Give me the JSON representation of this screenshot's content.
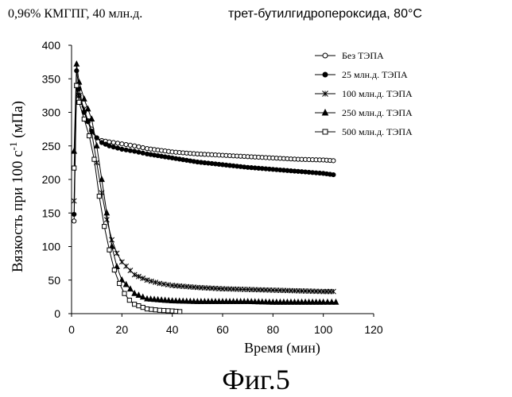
{
  "header": {
    "title_part1": "0,96% КМГПГ, 40 млн.д.",
    "title_part2": "трет-бутилгидропероксида, 80°С"
  },
  "footer": {
    "figure_label": "Фиг.5"
  },
  "chart_data": {
    "type": "line",
    "title": "0,96% КМГПГ, 40 млн.д. трет-бутилгидропероксида, 80°С",
    "xlabel": "Время (мин)",
    "ylabel_main": "Вязкость при 100 с",
    "ylabel_sup": "-1",
    "ylabel_tail": " (мПа)",
    "xlim": [
      0,
      120
    ],
    "ylim": [
      0,
      400
    ],
    "x_ticks": [
      "0",
      "20",
      "40",
      "60",
      "80",
      "100",
      "120"
    ],
    "y_ticks": [
      "0",
      "50",
      "100",
      "150",
      "200",
      "250",
      "300",
      "350",
      "400"
    ],
    "grid": false,
    "legend_position": "top-right",
    "series": [
      {
        "name": "Без ТЭПА",
        "marker": "open-circle",
        "points": [
          [
            1,
            138
          ],
          [
            2,
            340
          ],
          [
            3,
            325
          ],
          [
            5,
            300
          ],
          [
            8,
            275
          ],
          [
            10,
            262
          ],
          [
            12,
            258
          ],
          [
            15,
            256
          ],
          [
            20,
            253
          ],
          [
            25,
            250
          ],
          [
            30,
            246
          ],
          [
            40,
            241
          ],
          [
            50,
            238
          ],
          [
            60,
            236
          ],
          [
            70,
            234
          ],
          [
            80,
            232
          ],
          [
            90,
            230
          ],
          [
            100,
            229
          ],
          [
            104,
            228
          ]
        ]
      },
      {
        "name": "25 млн.д. ТЭПА",
        "marker": "filled-circle",
        "points": [
          [
            1,
            148
          ],
          [
            2,
            362
          ],
          [
            3,
            335
          ],
          [
            5,
            300
          ],
          [
            8,
            272
          ],
          [
            10,
            262
          ],
          [
            12,
            255
          ],
          [
            15,
            250
          ],
          [
            20,
            245
          ],
          [
            25,
            242
          ],
          [
            30,
            238
          ],
          [
            40,
            232
          ],
          [
            50,
            226
          ],
          [
            60,
            222
          ],
          [
            70,
            218
          ],
          [
            80,
            215
          ],
          [
            90,
            212
          ],
          [
            100,
            209
          ],
          [
            104,
            207
          ]
        ]
      },
      {
        "name": "100 млн.д. ТЭПА",
        "marker": "asterisk",
        "points": [
          [
            1,
            168
          ],
          [
            2,
            340
          ],
          [
            3,
            325
          ],
          [
            5,
            305
          ],
          [
            8,
            270
          ],
          [
            10,
            225
          ],
          [
            12,
            180
          ],
          [
            14,
            140
          ],
          [
            16,
            110
          ],
          [
            18,
            90
          ],
          [
            20,
            77
          ],
          [
            25,
            58
          ],
          [
            30,
            50
          ],
          [
            35,
            45
          ],
          [
            40,
            42
          ],
          [
            50,
            39
          ],
          [
            60,
            37
          ],
          [
            70,
            36
          ],
          [
            80,
            35
          ],
          [
            90,
            34
          ],
          [
            100,
            33
          ],
          [
            104,
            33
          ]
        ]
      },
      {
        "name": "250 млн.д. ТЭПА",
        "marker": "filled-triangle",
        "points": [
          [
            1,
            242
          ],
          [
            2,
            372
          ],
          [
            3,
            345
          ],
          [
            5,
            320
          ],
          [
            8,
            290
          ],
          [
            10,
            250
          ],
          [
            12,
            200
          ],
          [
            14,
            150
          ],
          [
            16,
            100
          ],
          [
            18,
            70
          ],
          [
            20,
            50
          ],
          [
            25,
            30
          ],
          [
            30,
            22
          ],
          [
            40,
            19
          ],
          [
            50,
            18
          ],
          [
            60,
            18
          ],
          [
            70,
            18
          ],
          [
            80,
            17
          ],
          [
            90,
            17
          ],
          [
            100,
            17
          ],
          [
            105,
            17
          ]
        ]
      },
      {
        "name": "500 млн.д. ТЭПА",
        "marker": "open-square",
        "points": [
          [
            1,
            217
          ],
          [
            2,
            340
          ],
          [
            3,
            315
          ],
          [
            5,
            290
          ],
          [
            7,
            265
          ],
          [
            9,
            230
          ],
          [
            11,
            175
          ],
          [
            13,
            130
          ],
          [
            15,
            95
          ],
          [
            17,
            65
          ],
          [
            19,
            45
          ],
          [
            21,
            30
          ],
          [
            23,
            20
          ],
          [
            25,
            14
          ],
          [
            30,
            7
          ],
          [
            35,
            5
          ],
          [
            40,
            4
          ],
          [
            43,
            3
          ]
        ]
      }
    ]
  }
}
